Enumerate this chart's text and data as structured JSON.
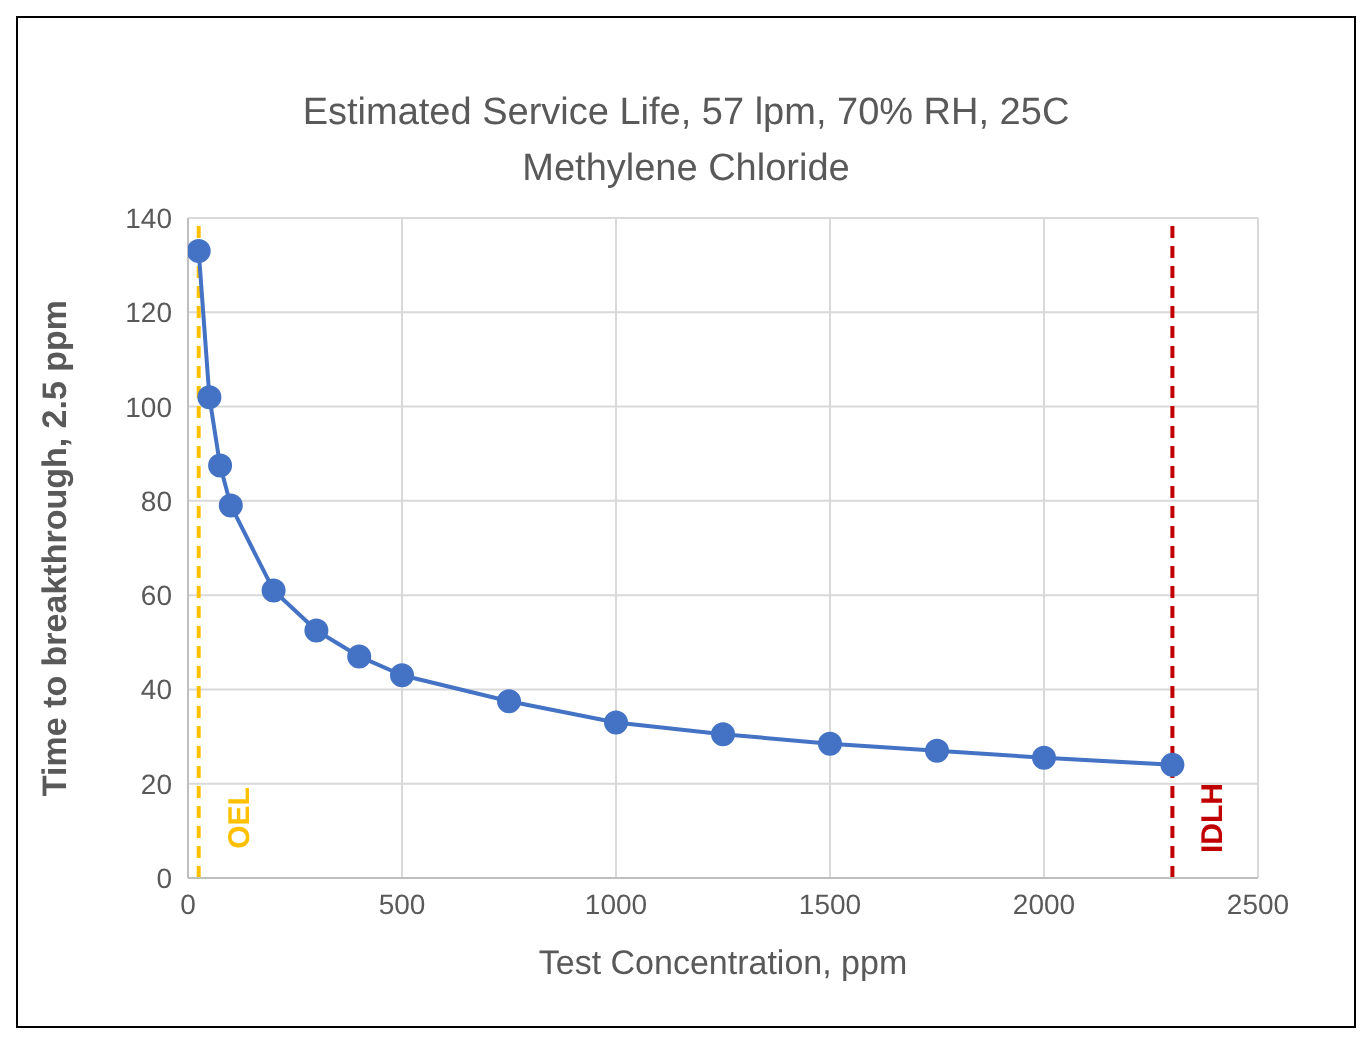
{
  "chart_data": {
    "type": "line",
    "title": "Estimated Service Life, 57 lpm, 70% RH, 25C",
    "subtitle": "Methylene Chloride",
    "xlabel": "Test Concentration, ppm",
    "ylabel": "Time to breakthrough, 2.5 ppm",
    "x": [
      25,
      50,
      75,
      100,
      200,
      300,
      400,
      500,
      750,
      1000,
      1250,
      1500,
      1750,
      2000,
      2300
    ],
    "series": [
      {
        "color": "#4472c4",
        "values": [
          133,
          102,
          87.5,
          79,
          61,
          52.5,
          47,
          43,
          37.5,
          33,
          30.5,
          28.5,
          27,
          25.5,
          24
        ]
      }
    ],
    "xlim": [
      0,
      2500
    ],
    "xticks": [
      0,
      500,
      1000,
      1500,
      2000,
      2500
    ],
    "ylim": [
      0,
      140
    ],
    "yticks": [
      0,
      20,
      40,
      60,
      80,
      100,
      120,
      140
    ],
    "grid": true,
    "legend": false,
    "marker": "circle",
    "line_style": "solid",
    "ref_lines": [
      {
        "axis": "x",
        "value": 25,
        "label": "OEL",
        "color": "#ffc000",
        "line_style": "dashed"
      },
      {
        "axis": "x",
        "value": 2300,
        "label": "IDLH",
        "color": "#c00000",
        "line_style": "dashed"
      }
    ]
  }
}
